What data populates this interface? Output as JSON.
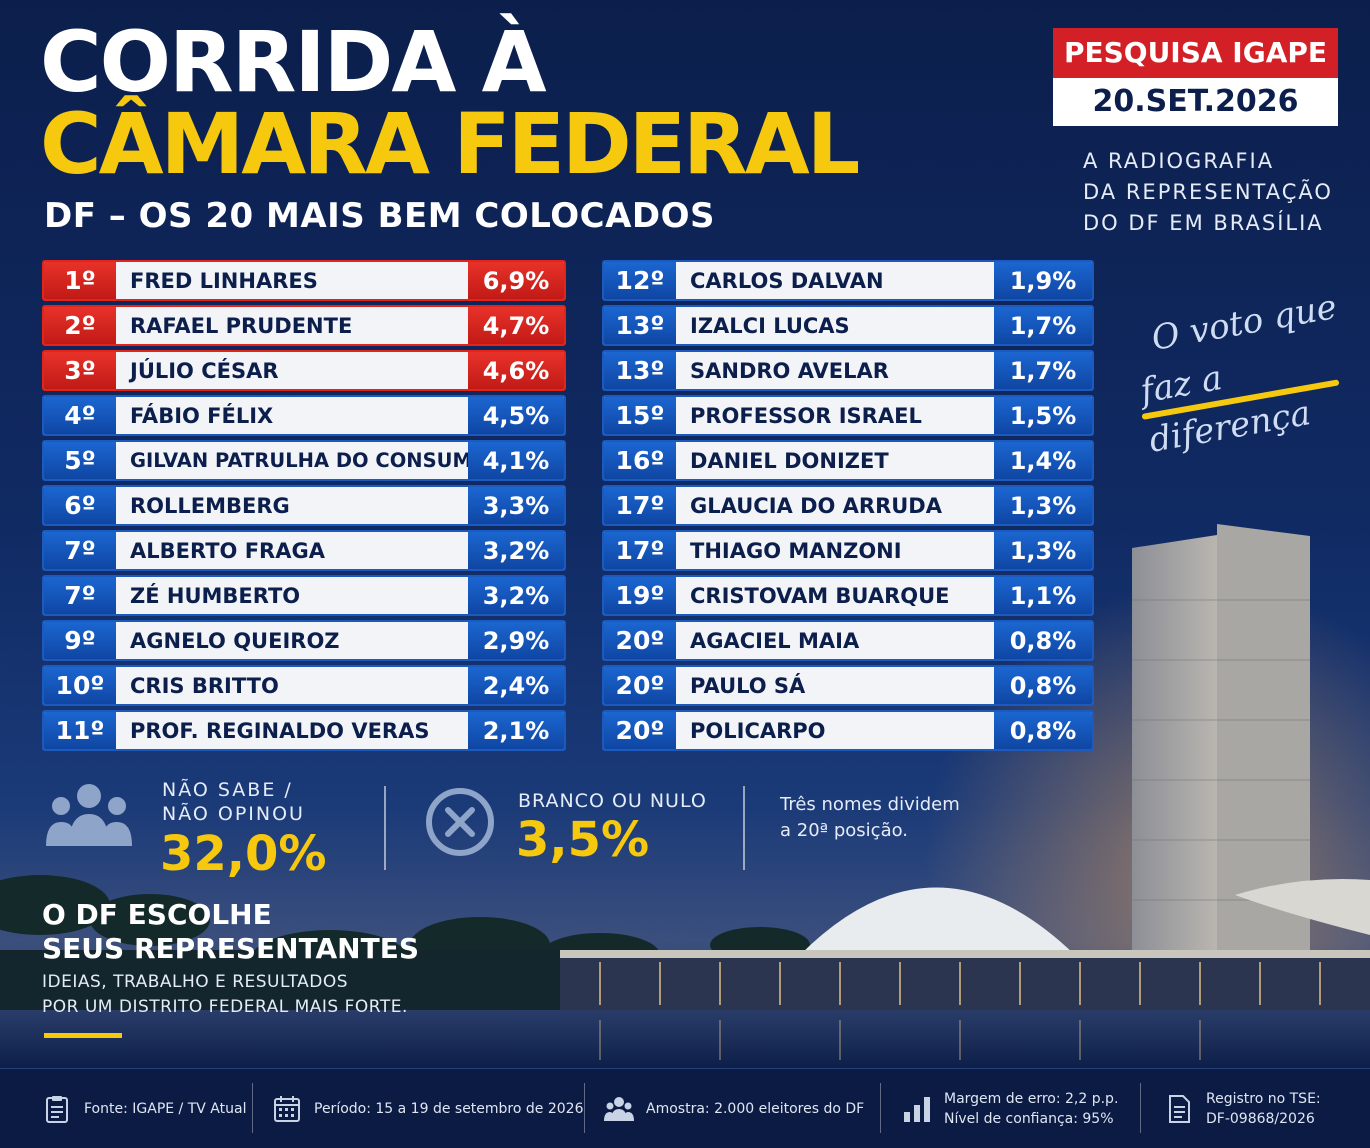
{
  "header": {
    "title_line1": "CORRIDA À",
    "title_line2": "CÂMARA FEDERAL",
    "subtitle": "DF – OS 20 MAIS BEM COLOCADOS",
    "badge_top": "PESQUISA IGAPE",
    "badge_date": "20.SET.2026",
    "tagline_line1": "A RADIOGRAFIA",
    "tagline_line2": "DA REPRESENTAÇÃO",
    "tagline_line3": "DO DF EM BRASÍLIA",
    "slogan_line1": "O voto que",
    "slogan_line2": "faz a diferença"
  },
  "ranking_left": [
    {
      "rank": "1º",
      "name": "FRED LINHARES",
      "pct": "6,9%"
    },
    {
      "rank": "2º",
      "name": "RAFAEL PRUDENTE",
      "pct": "4,7%"
    },
    {
      "rank": "3º",
      "name": "JÚLIO CÉSAR",
      "pct": "4,6%"
    },
    {
      "rank": "4º",
      "name": "FÁBIO FÉLIX",
      "pct": "4,5%"
    },
    {
      "rank": "5º",
      "name": "GILVAN PATRULHA DO CONSUMIDOR",
      "pct": "4,1%"
    },
    {
      "rank": "6º",
      "name": "ROLLEMBERG",
      "pct": "3,3%"
    },
    {
      "rank": "7º",
      "name": "ALBERTO FRAGA",
      "pct": "3,2%"
    },
    {
      "rank": "7º",
      "name": "ZÉ HUMBERTO",
      "pct": "3,2%"
    },
    {
      "rank": "9º",
      "name": "AGNELO QUEIROZ",
      "pct": "2,9%"
    },
    {
      "rank": "10º",
      "name": "CRIS BRITTO",
      "pct": "2,4%"
    },
    {
      "rank": "11º",
      "name": "PROF. REGINALDO VERAS",
      "pct": "2,1%"
    }
  ],
  "ranking_right": [
    {
      "rank": "12º",
      "name": "CARLOS DALVAN",
      "pct": "1,9%"
    },
    {
      "rank": "13º",
      "name": "IZALCI LUCAS",
      "pct": "1,7%"
    },
    {
      "rank": "13º",
      "name": "SANDRO AVELAR",
      "pct": "1,7%"
    },
    {
      "rank": "15º",
      "name": "PROFESSOR ISRAEL",
      "pct": "1,5%"
    },
    {
      "rank": "16º",
      "name": "DANIEL DONIZET",
      "pct": "1,4%"
    },
    {
      "rank": "17º",
      "name": "GLAUCIA DO ARRUDA",
      "pct": "1,3%"
    },
    {
      "rank": "17º",
      "name": "THIAGO MANZONI",
      "pct": "1,3%"
    },
    {
      "rank": "19º",
      "name": "CRISTOVAM BUARQUE",
      "pct": "1,1%"
    },
    {
      "rank": "20º",
      "name": "AGACIEL MAIA",
      "pct": "0,8%"
    },
    {
      "rank": "20º",
      "name": "PAULO SÁ",
      "pct": "0,8%"
    },
    {
      "rank": "20º",
      "name": "POLICARPO",
      "pct": "0,8%"
    }
  ],
  "stats": {
    "nao_sabe_label1": "NÃO SABE /",
    "nao_sabe_label2": "NÃO OPINOU",
    "nao_sabe_value": "32,0%",
    "branco_label": "BRANCO OU NULO",
    "branco_value": "3,5%",
    "note_line1": "Três nomes dividem",
    "note_line2": "a 20ª posição."
  },
  "message": {
    "title_line1": "O DF ESCOLHE",
    "title_line2": "SEUS REPRESENTANTES",
    "sub_line1": "IDEIAS, TRABALHO E RESULTADOS",
    "sub_line2": "POR UM DISTRITO FEDERAL MAIS FORTE."
  },
  "footer": {
    "fonte": "Fonte: IGAPE / TV Atual",
    "periodo": "Período: 15 a 19 de setembro de 2026",
    "amostra": "Amostra: 2.000 eleitores do DF",
    "margem_line1": "Margem de erro: 2,2 p.p.",
    "margem_line2": "Nível de confiança: 95%",
    "registro_line1": "Registro no TSE:",
    "registro_line2": "DF-09868/2026"
  },
  "colors": {
    "navy": "#0c1f4c",
    "yellow": "#f6c90e",
    "red": "#d32026",
    "blue": "#1c5bbd"
  }
}
